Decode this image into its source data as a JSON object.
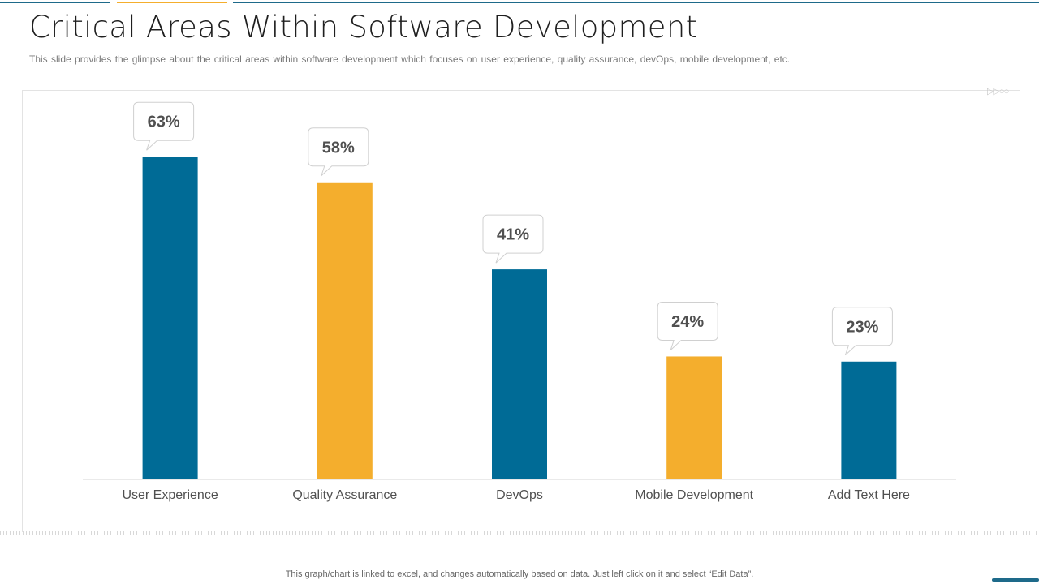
{
  "page": {
    "title": "Critical Areas Within Software Development",
    "subtitle": "This slide provides  the glimpse about the critical areas within software  development  which focuses on user experience,  quality assurance,  devOps,  mobile development,  etc.",
    "footnote": "This graph/chart is linked to excel,  and changes automatically based on data. Just left click on it and select “Edit Data”."
  },
  "colors": {
    "blue": "#006b96",
    "orange": "#f4ae2d",
    "axis": "#d4d4d4",
    "label": "#505050",
    "callout_border": "#d0d0d0",
    "callout_text": "#505050"
  },
  "chart_data": {
    "type": "bar",
    "title": "",
    "xlabel": "",
    "ylabel": "",
    "ylim": [
      0,
      0.7
    ],
    "categories": [
      "User Experience",
      "Quality Assurance",
      "DevOps",
      "Mobile Development",
      "Add Text Here"
    ],
    "values": [
      0.63,
      0.58,
      0.41,
      0.24,
      0.23
    ],
    "data_labels": [
      "63%",
      "58%",
      "41%",
      "24%",
      "23%"
    ],
    "bar_colors": [
      "blue",
      "orange",
      "blue",
      "orange",
      "blue"
    ],
    "grid": false,
    "legend": "none"
  }
}
